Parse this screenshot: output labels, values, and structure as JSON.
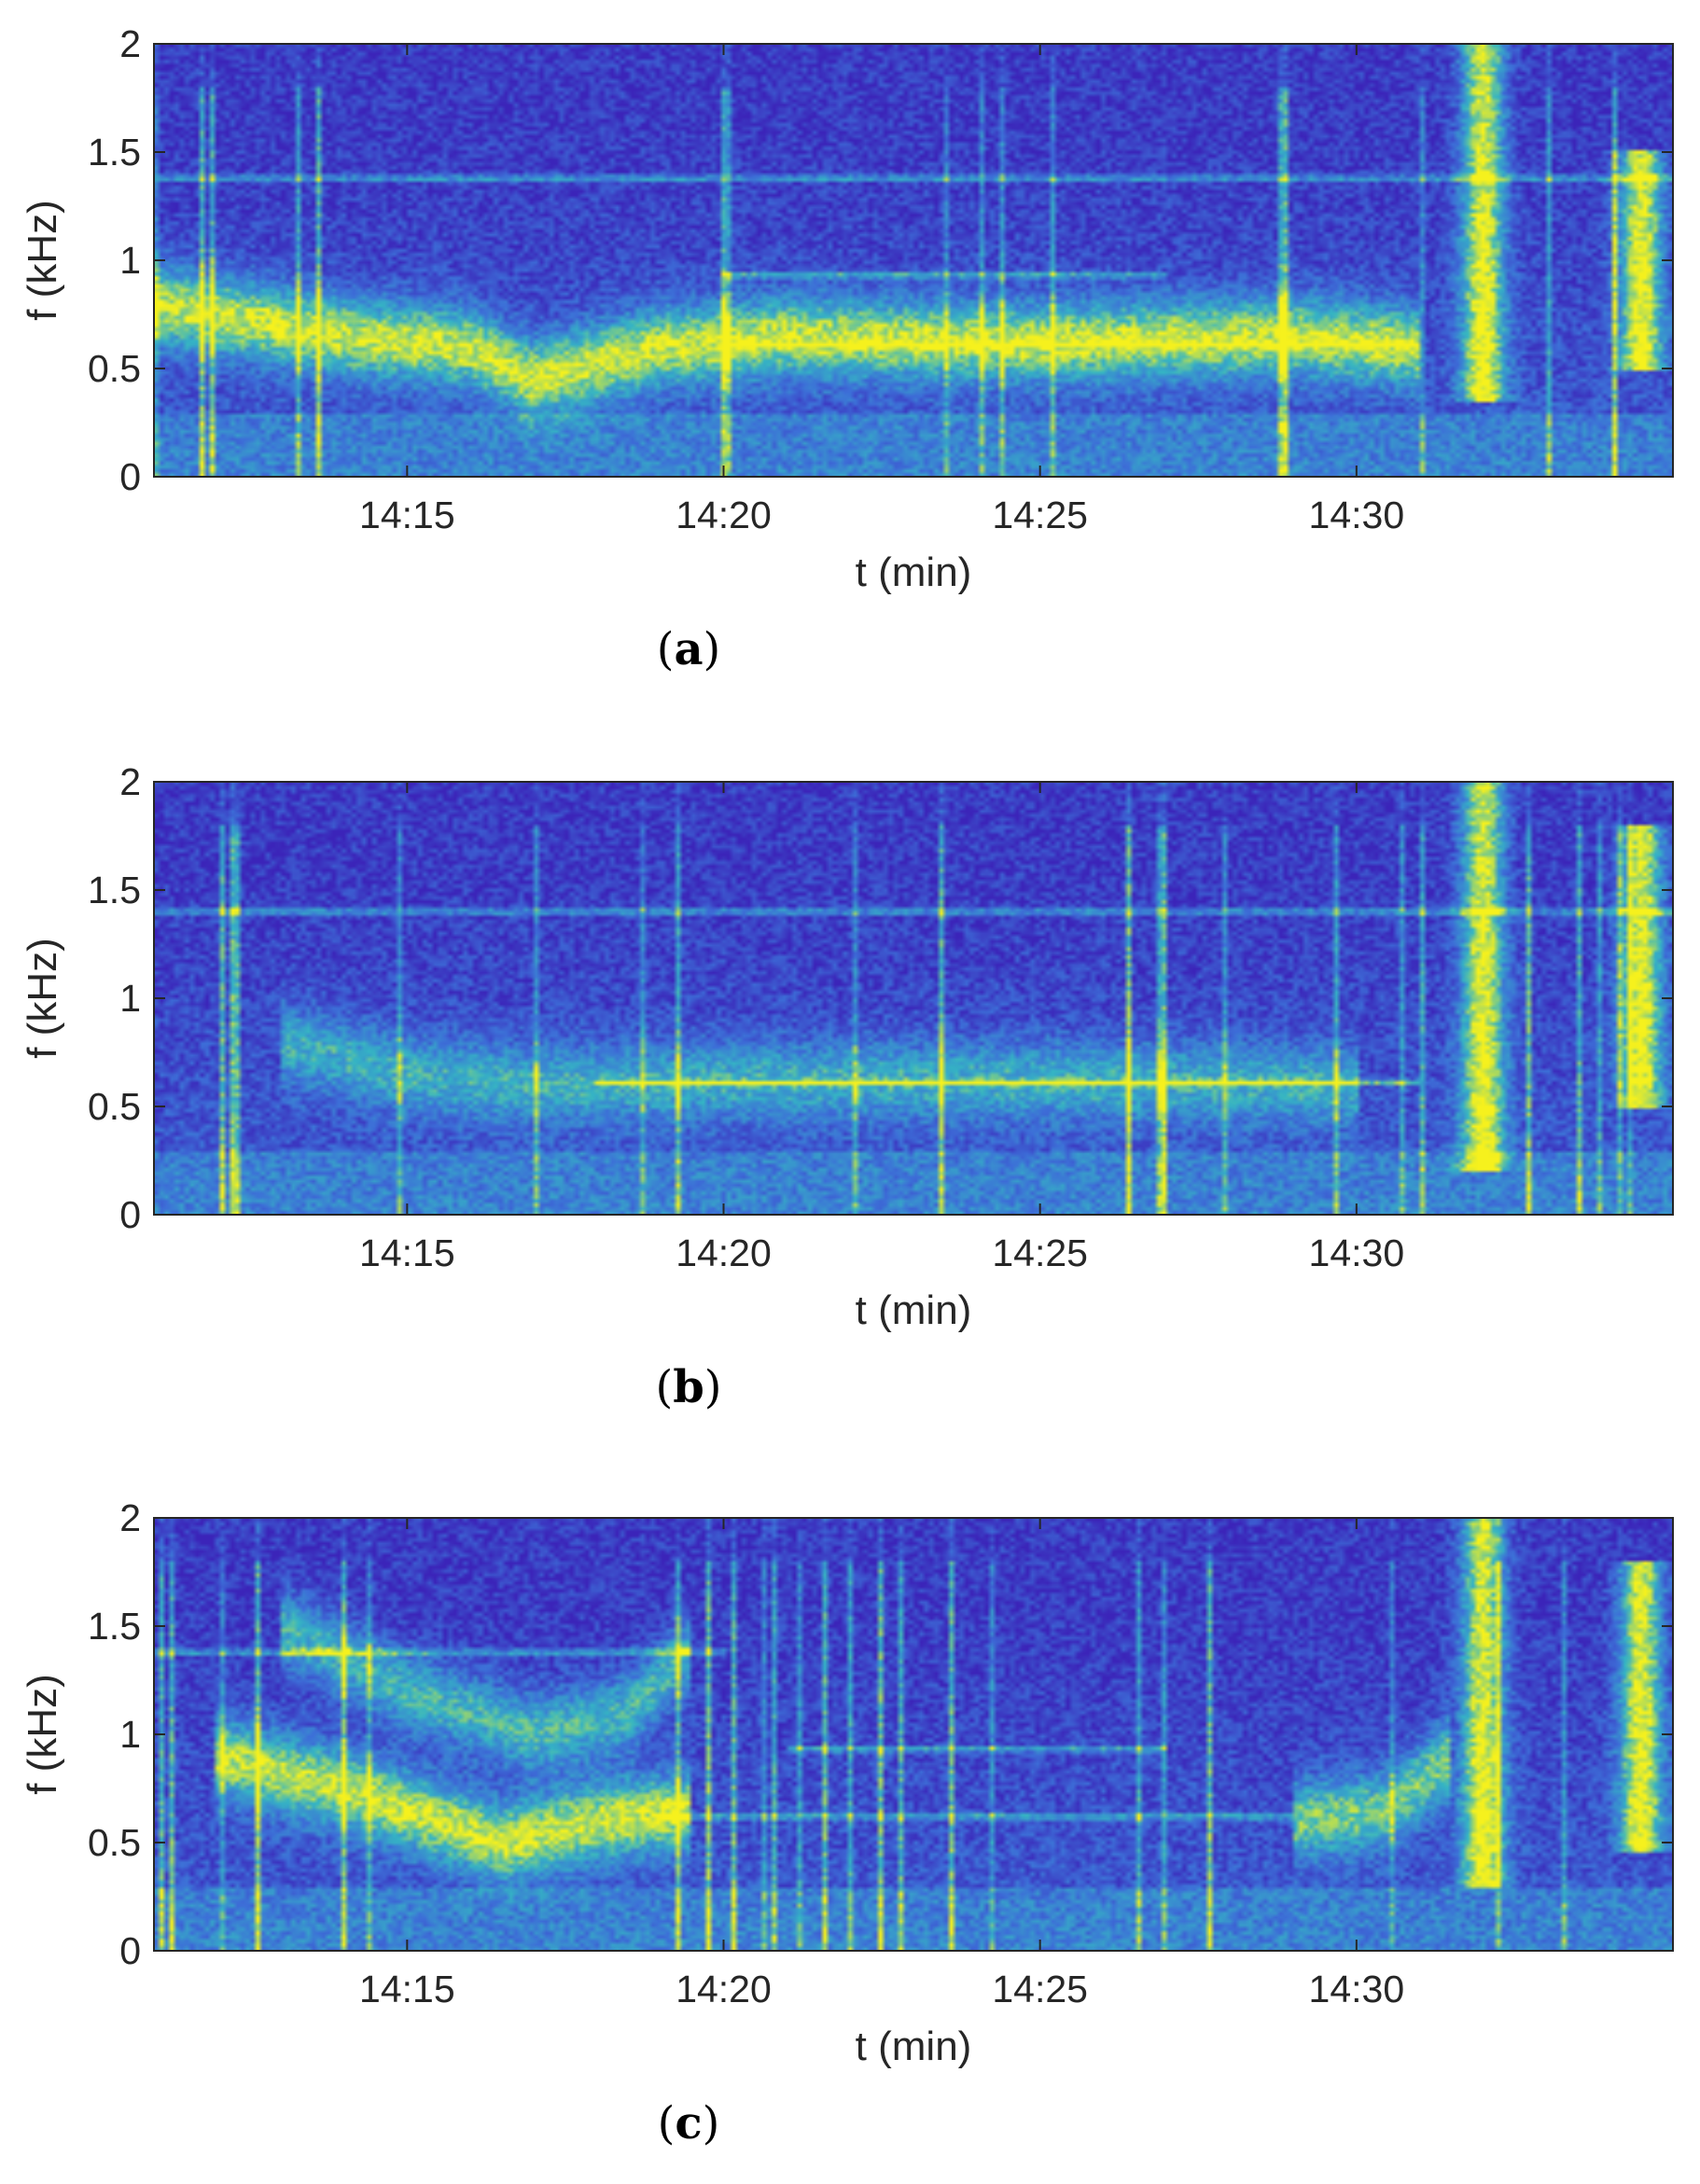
{
  "colors": {
    "background": "#3b24b9",
    "mid": "#3d6fd8",
    "cyan": "#35b5c4",
    "yellow": "#f6f11d",
    "axis": "#262626"
  },
  "chart_data": [
    {
      "type": "heatmap",
      "panel_label": "a",
      "xlabel": "t (min)",
      "ylabel": "f (kHz)",
      "xlim": [
        "14:11",
        "14:35"
      ],
      "ylim": [
        0,
        2
      ],
      "xticks": [
        "14:15",
        "14:20",
        "14:25",
        "14:30"
      ],
      "yticks": [
        "0",
        "0.5",
        "1",
        "1.5",
        "2"
      ],
      "colormap": "parula",
      "features": [
        {
          "kind": "band",
          "points": [
            [
              "14:11",
              0.8
            ],
            [
              "14:14",
              0.65
            ],
            [
              "14:16",
              0.6
            ],
            [
              "14:17",
              0.45
            ]
          ],
          "strength": 1.0
        },
        {
          "kind": "band",
          "points": [
            [
              "14:17",
              0.45
            ],
            [
              "14:19",
              0.6
            ],
            [
              "14:21",
              0.65
            ],
            [
              "14:25",
              0.62
            ],
            [
              "14:29",
              0.65
            ],
            [
              "14:31",
              0.6
            ]
          ],
          "strength": 1.0
        },
        {
          "kind": "tone",
          "f": 0.61,
          "from": "14:20",
          "to": "14:31"
        },
        {
          "kind": "tone",
          "f": 0.93,
          "from": "14:20",
          "to": "14:27"
        },
        {
          "kind": "tone",
          "f": 1.38,
          "from": "14:11",
          "to": "14:35"
        },
        {
          "kind": "burst",
          "t": "14:32",
          "f_range": [
            0.35,
            2.0
          ]
        },
        {
          "kind": "burst",
          "t": "14:34.5",
          "f_range": [
            0.5,
            1.5
          ]
        }
      ]
    },
    {
      "type": "heatmap",
      "panel_label": "b",
      "xlabel": "t (min)",
      "ylabel": "f (kHz)",
      "xlim": [
        "14:11",
        "14:35"
      ],
      "ylim": [
        0,
        2
      ],
      "xticks": [
        "14:15",
        "14:20",
        "14:25",
        "14:30"
      ],
      "yticks": [
        "0",
        "0.5",
        "1",
        "1.5",
        "2"
      ],
      "colormap": "parula",
      "features": [
        {
          "kind": "band",
          "points": [
            [
              "14:13",
              0.8
            ],
            [
              "14:15",
              0.65
            ],
            [
              "14:17",
              0.6
            ],
            [
              "14:20",
              0.62
            ],
            [
              "14:25",
              0.62
            ],
            [
              "14:30",
              0.6
            ]
          ],
          "strength": 0.6
        },
        {
          "kind": "tone",
          "f": 0.61,
          "from": "14:18",
          "to": "14:31"
        },
        {
          "kind": "tone",
          "f": 1.4,
          "from": "14:11",
          "to": "14:35"
        },
        {
          "kind": "burst",
          "t": "14:32",
          "f_range": [
            0.2,
            2.0
          ]
        },
        {
          "kind": "burst",
          "t": "14:34.5",
          "f_range": [
            0.5,
            1.8
          ]
        }
      ]
    },
    {
      "type": "heatmap",
      "panel_label": "c",
      "xlabel": "t (min)",
      "ylabel": "f (kHz)",
      "xlim": [
        "14:11",
        "14:35"
      ],
      "ylim": [
        0,
        2
      ],
      "xticks": [
        "14:15",
        "14:20",
        "14:25",
        "14:30"
      ],
      "yticks": [
        "0",
        "0.5",
        "1",
        "1.5",
        "2"
      ],
      "colormap": "parula",
      "features": [
        {
          "kind": "band",
          "points": [
            [
              "14:12",
              0.9
            ],
            [
              "14:14",
              0.75
            ],
            [
              "14:16.5",
              0.5
            ],
            [
              "14:18",
              0.6
            ],
            [
              "14:19.5",
              0.65
            ]
          ],
          "strength": 1.0
        },
        {
          "kind": "band",
          "points": [
            [
              "14:13",
              1.5
            ],
            [
              "14:15",
              1.2
            ],
            [
              "14:17",
              1.0
            ],
            [
              "14:18.5",
              1.1
            ],
            [
              "14:19.5",
              1.4
            ]
          ],
          "strength": 0.7
        },
        {
          "kind": "tone",
          "f": 0.62,
          "from": "14:19",
          "to": "14:29"
        },
        {
          "kind": "tone",
          "f": 0.93,
          "from": "14:21",
          "to": "14:27"
        },
        {
          "kind": "tone",
          "f": 1.38,
          "from": "14:11",
          "to": "14:20"
        },
        {
          "kind": "burst",
          "t": "14:32",
          "f_range": [
            0.3,
            2.0
          ]
        },
        {
          "kind": "burst",
          "t": "14:34.5",
          "f_range": [
            0.45,
            1.8
          ]
        },
        {
          "kind": "band",
          "points": [
            [
              "14:29",
              0.6
            ],
            [
              "14:30.5",
              0.65
            ],
            [
              "14:31.5",
              0.9
            ]
          ],
          "strength": 0.8
        }
      ]
    }
  ]
}
